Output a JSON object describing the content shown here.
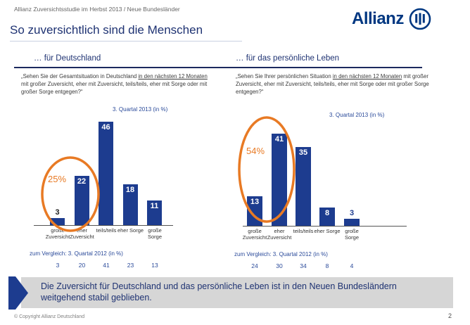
{
  "slide": {
    "header": "Allianz Zuversichtsstudie im Herbst 2013 / Neue Bundesländer",
    "title": "So zuversichtlich sind die Menschen",
    "takeaway": "Die Zuversicht für Deutschland und das persönliche Leben ist in den Neuen Bundesländern weitgehend stabil geblieben.",
    "footer_copyright": "© Copyright Allianz Deutschland",
    "page_number": "2"
  },
  "logo": {
    "brand": "Allianz"
  },
  "colors": {
    "brand_navy": "#003781",
    "bar_blue": "#1d3c8f",
    "accent_orange": "#e87a24",
    "box_gray": "#d6d6d6"
  },
  "chart_data": [
    {
      "type": "bar",
      "title": "… für Deutschland",
      "question_before": "„Sehen Sie der Gesamtsituation in Deutschland ",
      "question_underlined": "in den nächsten 12 Monaten",
      "question_after": " mit großer Zuversicht, eher mit Zuversicht, teils/teils, eher mit Sorge oder mit großer Sorge entgegen?“",
      "subtitle": "3. Quartal 2013 (in %)",
      "categories": [
        [
          "große",
          "Zuversicht"
        ],
        [
          "eher",
          "Zuversicht"
        ],
        [
          "teils/teils"
        ],
        [
          "eher Sorge"
        ],
        [
          "große",
          "Sorge"
        ]
      ],
      "values": [
        3,
        22,
        46,
        18,
        11
      ],
      "highlight_pct": "25%",
      "comparison_label": "zum Vergleich: 3. Quartal 2012 (in %)",
      "comparison_values": [
        3,
        20,
        41,
        23,
        13
      ],
      "ylim": [
        0,
        50
      ],
      "grid": false,
      "legend": "none"
    },
    {
      "type": "bar",
      "title": "… für das persönliche Leben",
      "question_before": "„Sehen Sie Ihrer persönlichen Situation ",
      "question_underlined": "in den nächsten 12 Monaten",
      "question_after": " mit großer Zuversicht, eher mit Zuversicht, teils/teils, eher mit Sorge oder mit großer Sorge entgegen?“",
      "subtitle": "3. Quartal 2013 (in %)",
      "categories": [
        [
          "große",
          "Zuversicht"
        ],
        [
          "eher",
          "Zuversicht"
        ],
        [
          "teils/teils"
        ],
        [
          "eher Sorge"
        ],
        [
          "große",
          "Sorge"
        ]
      ],
      "values": [
        13,
        41,
        35,
        8,
        3
      ],
      "highlight_pct": "54%",
      "comparison_label": "zum Vergleich: 3. Quartal 2012 (in %)",
      "comparison_values": [
        24,
        30,
        34,
        8,
        4
      ],
      "ylim": [
        0,
        50
      ],
      "grid": false,
      "legend": "none"
    }
  ]
}
